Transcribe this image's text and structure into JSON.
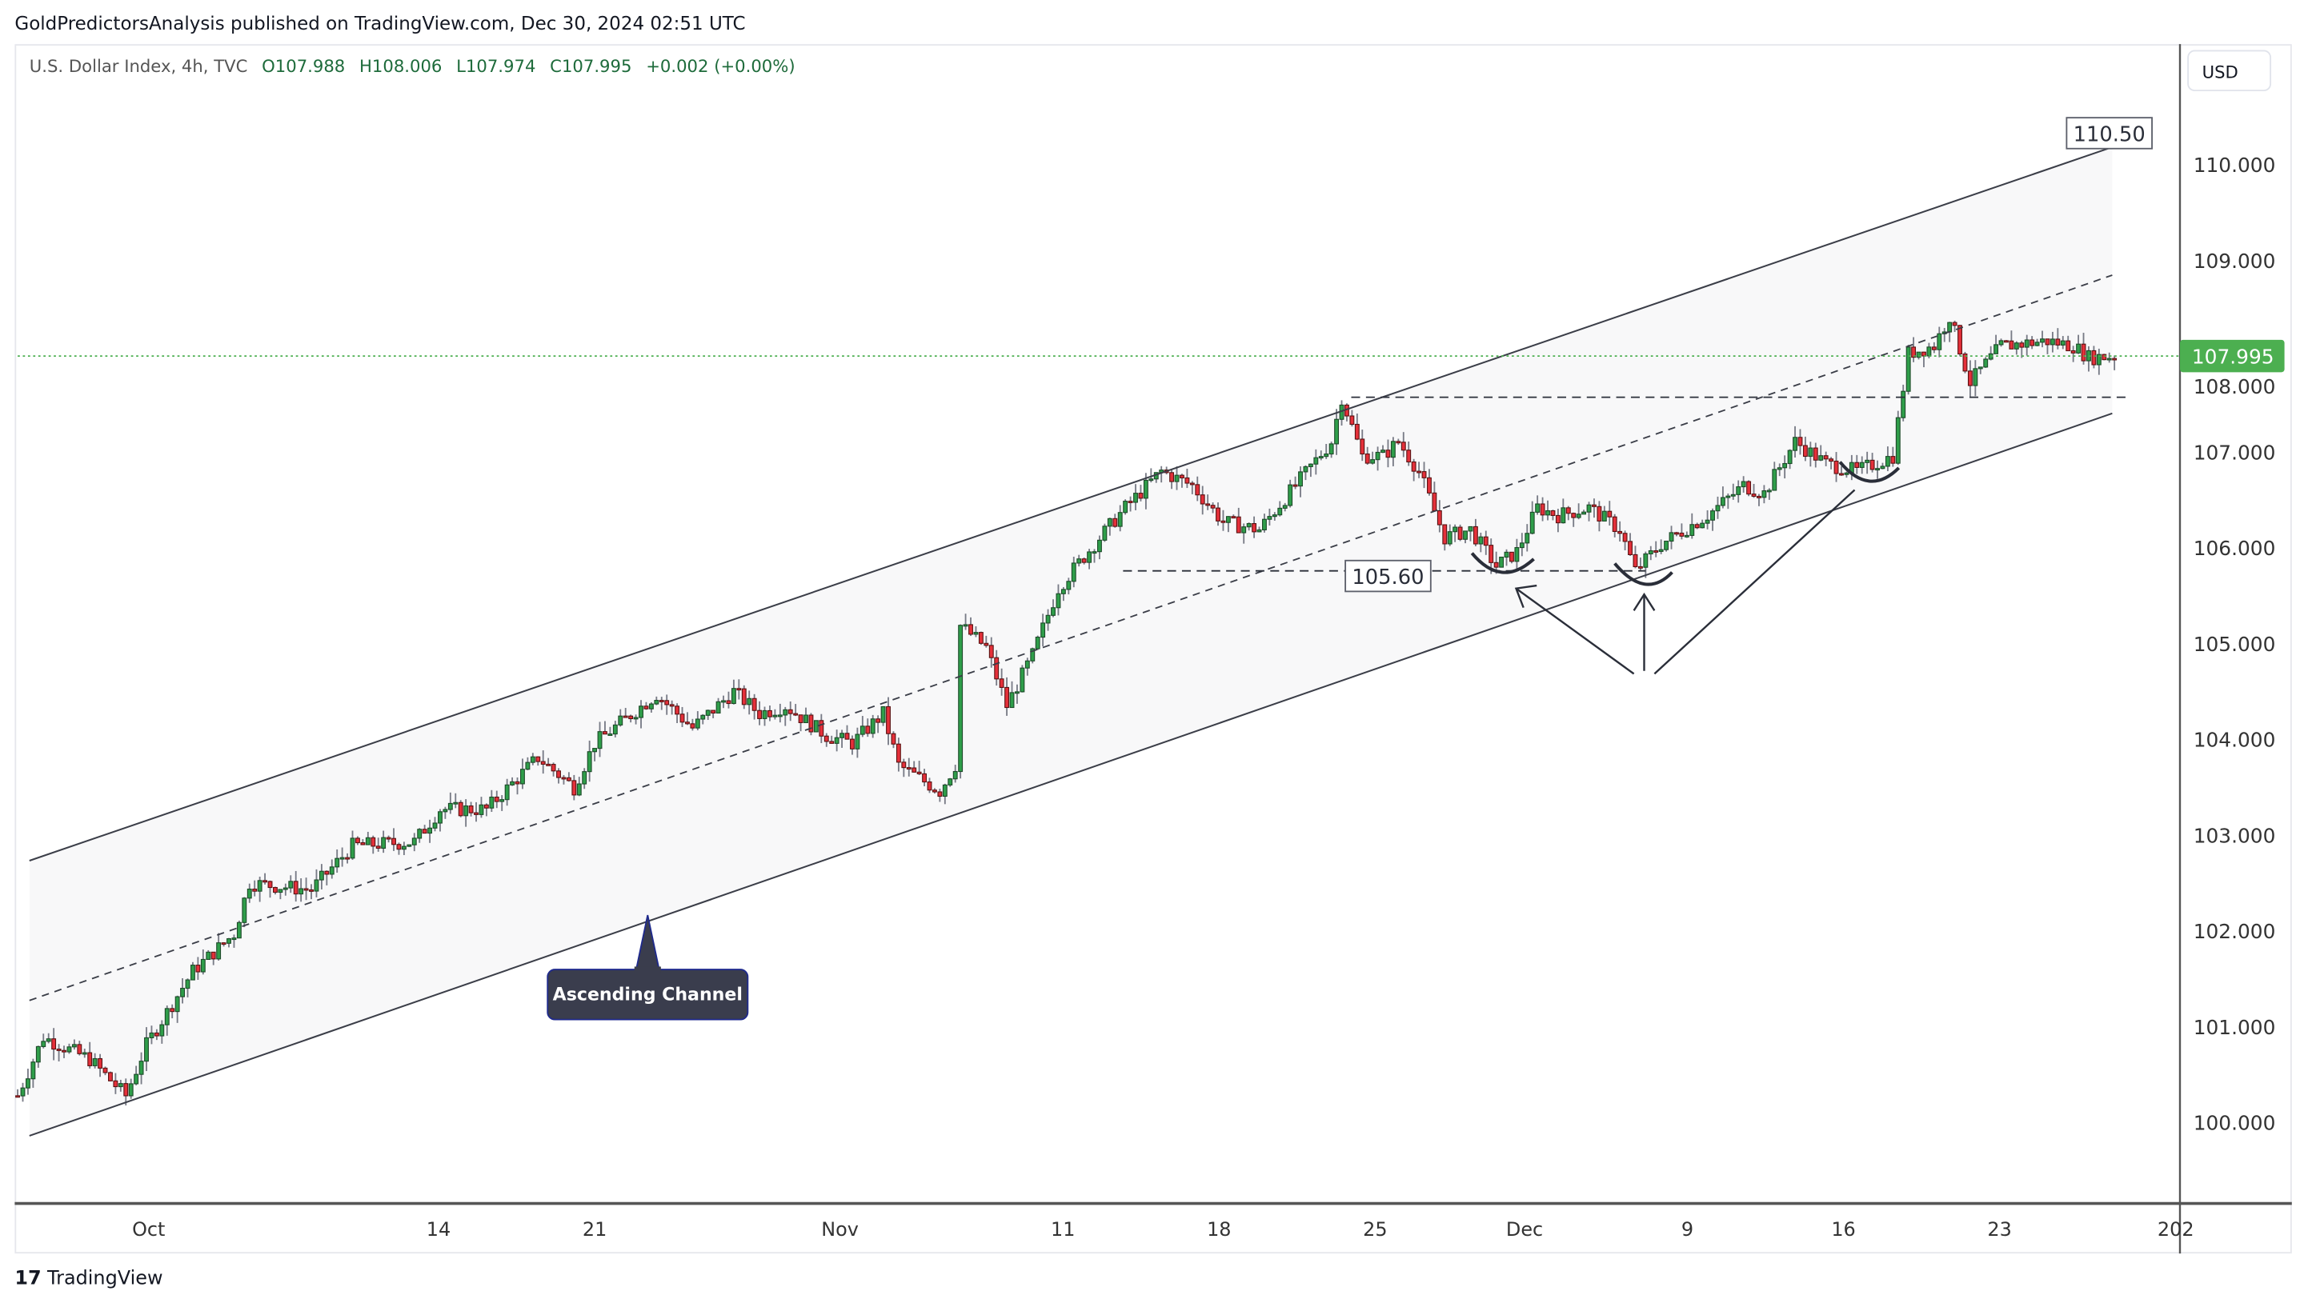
{
  "header": {
    "published": "GoldPredictorsAnalysis published on TradingView.com, Dec 30, 2024 02:51 UTC"
  },
  "legend": {
    "symbol": "U.S. Dollar Index, 4h, TVC",
    "open": "O107.988",
    "high": "H108.006",
    "low": "L107.974",
    "close": "C107.995",
    "change": "+0.002 (+0.00%)"
  },
  "currency": "USD",
  "footer": {
    "logo_mark": "17",
    "logo_text": "TradingView"
  },
  "colors": {
    "up": "#2f9e4a",
    "up_border": "#1c4a28",
    "down": "#e5303a",
    "down_border": "#5a1212",
    "wick": "#787b86",
    "last_price": "#4caf50",
    "channel_fill": "#f8f8f9",
    "line": "#3b3e48"
  },
  "chart_data": {
    "type": "candlestick",
    "title": "U.S. Dollar Index, 4h, TVC",
    "ylim": [
      99.3,
      110.9
    ],
    "y_ticks": [
      "100.000",
      "101.000",
      "102.000",
      "103.000",
      "104.000",
      "105.000",
      "106.000",
      "107.000",
      "108.000",
      "109.000",
      "110.000"
    ],
    "y_tick_values": [
      100,
      101,
      102,
      103,
      104,
      105,
      106,
      107,
      108,
      109,
      110
    ],
    "x_ticks": [
      {
        "label": "Oct",
        "day": 0
      },
      {
        "label": "14",
        "day": 13
      },
      {
        "label": "21",
        "day": 20
      },
      {
        "label": "Nov",
        "day": 31
      },
      {
        "label": "11",
        "day": 41
      },
      {
        "label": "18",
        "day": 48
      },
      {
        "label": "25",
        "day": 55
      },
      {
        "label": "Dec",
        "day": 61.7
      },
      {
        "label": "9",
        "day": 69
      },
      {
        "label": "16",
        "day": 76
      },
      {
        "label": "23",
        "day": 83
      },
      {
        "label": "202",
        "day": 90.9
      }
    ],
    "x_unit": "calendar days since Oct 1, 2024",
    "price_path_by_bar": [
      [
        0,
        100.28
      ],
      [
        5,
        100.89
      ],
      [
        14,
        100.66
      ],
      [
        21,
        100.28
      ],
      [
        25,
        100.81
      ],
      [
        34,
        101.58
      ],
      [
        42,
        101.97
      ],
      [
        45,
        102.5
      ],
      [
        57,
        102.43
      ],
      [
        65,
        102.89
      ],
      [
        77,
        102.93
      ],
      [
        82,
        103.27
      ],
      [
        91,
        103.27
      ],
      [
        101,
        103.81
      ],
      [
        108,
        103.5
      ],
      [
        112,
        103.96
      ],
      [
        124,
        104.47
      ],
      [
        131,
        104.12
      ],
      [
        139,
        104.5
      ],
      [
        144,
        104.27
      ],
      [
        149,
        104.35
      ],
      [
        157,
        104.04
      ],
      [
        162,
        103.96
      ],
      [
        168,
        104.27
      ],
      [
        171,
        103.73
      ],
      [
        179,
        103.46
      ],
      [
        182,
        103.73
      ],
      [
        183,
        105.19
      ],
      [
        188,
        104.96
      ],
      [
        192,
        104.35
      ],
      [
        197,
        104.88
      ],
      [
        202,
        105.58
      ],
      [
        209,
        106.04
      ],
      [
        215,
        106.42
      ],
      [
        222,
        106.8
      ],
      [
        228,
        106.65
      ],
      [
        234,
        106.27
      ],
      [
        241,
        106.19
      ],
      [
        248,
        106.65
      ],
      [
        255,
        107.11
      ],
      [
        257,
        107.57
      ],
      [
        261,
        106.96
      ],
      [
        265,
        106.96
      ],
      [
        268,
        107.11
      ],
      [
        272,
        106.8
      ],
      [
        277,
        106.11
      ],
      [
        282,
        106.19
      ],
      [
        287,
        105.81
      ],
      [
        291,
        105.96
      ],
      [
        295,
        106.42
      ],
      [
        299,
        106.34
      ],
      [
        305,
        106.42
      ],
      [
        311,
        106.19
      ],
      [
        314,
        105.76
      ],
      [
        319,
        106.04
      ],
      [
        328,
        106.34
      ],
      [
        335,
        106.65
      ],
      [
        339,
        106.57
      ],
      [
        345,
        107.11
      ],
      [
        351,
        106.88
      ],
      [
        357,
        106.8
      ],
      [
        364,
        106.96
      ],
      [
        367,
        108.03
      ],
      [
        372,
        108.11
      ],
      [
        375,
        108.42
      ],
      [
        379,
        107.73
      ],
      [
        385,
        108.11
      ],
      [
        394,
        108.16
      ],
      [
        399,
        108.11
      ],
      [
        402,
        107.99
      ],
      [
        407,
        108.0
      ]
    ],
    "last_price": "107.995",
    "last_price_value": 107.995,
    "annotations": {
      "channel_label": "Ascending Channel",
      "upper_target": "110.50",
      "support_level": "105.60",
      "resistance_level_value": 107.57,
      "upper_channel": [
        [
          100.0,
          102.76
        ],
        [
          110.5,
          110.21
        ]
      ],
      "lower_channel": [
        [
          100.0,
          99.89
        ],
        [
          110.5,
          107.43
        ]
      ]
    }
  }
}
